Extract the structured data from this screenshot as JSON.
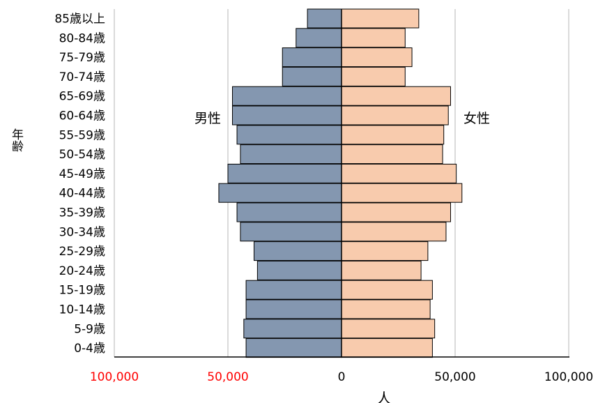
{
  "chart_data": {
    "type": "bar",
    "orientation": "horizontal",
    "chart_subtype": "population-pyramid",
    "categories": [
      "85歳以上",
      "80-84歳",
      "75-79歳",
      "70-74歳",
      "65-69歳",
      "60-64歳",
      "55-59歳",
      "50-54歳",
      "45-49歳",
      "40-44歳",
      "35-39歳",
      "30-34歳",
      "25-29歳",
      "20-24歳",
      "15-19歳",
      "10-14歳",
      "5-9歳",
      "0-4歳"
    ],
    "series": [
      {
        "name": "男性",
        "color": "#8497b0",
        "values": [
          15000,
          20000,
          26000,
          26000,
          48000,
          48000,
          46000,
          44500,
          50000,
          54000,
          46000,
          44500,
          38500,
          37000,
          42000,
          42000,
          43000,
          42000
        ]
      },
      {
        "name": "女性",
        "color": "#f8cbad",
        "values": [
          34000,
          28000,
          31000,
          28000,
          48000,
          47000,
          45000,
          44500,
          50500,
          53000,
          48000,
          46000,
          38000,
          35000,
          40000,
          39000,
          41000,
          40000
        ]
      }
    ],
    "x_ticks": [
      {
        "label": "100,000",
        "color": "#ff0000"
      },
      {
        "label": "50,000",
        "color": "#ff0000"
      },
      {
        "label": "0",
        "color": "#000000"
      },
      {
        "label": "50,000",
        "color": "#000000"
      },
      {
        "label": "100,000",
        "color": "#000000"
      }
    ],
    "xlim": [
      -100000,
      100000
    ],
    "xlabel": "人",
    "ylabel": "年齢",
    "grid": "vertical",
    "bar_edge_color": "#000000"
  }
}
